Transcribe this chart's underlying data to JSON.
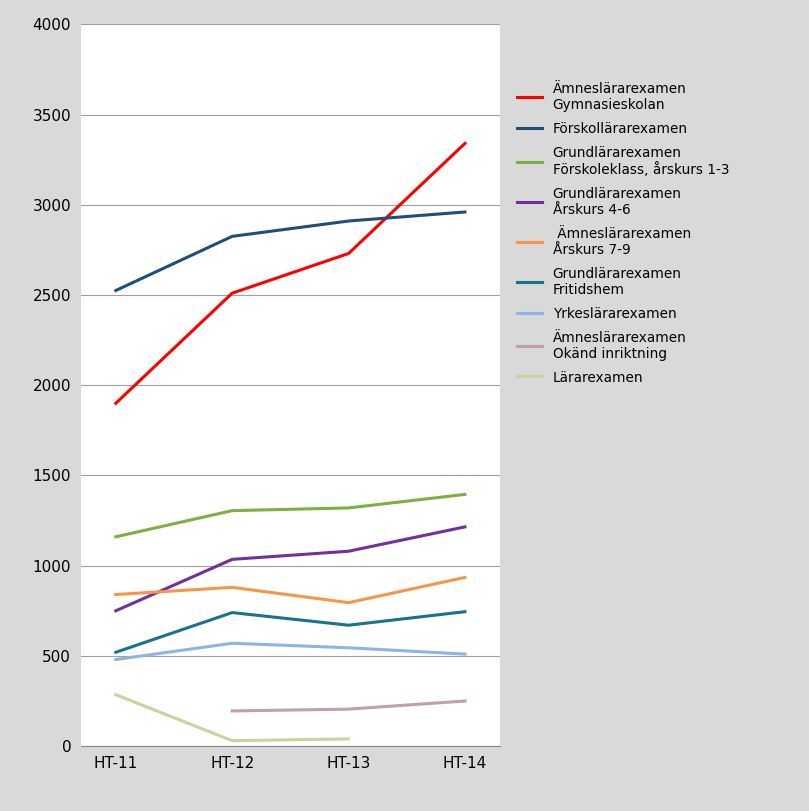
{
  "x_labels": [
    "HT-11",
    "HT-12",
    "HT-13",
    "HT-14"
  ],
  "series": [
    {
      "label": "Ämneslärarexamen\nGymnasieskolan",
      "color": "#ff0000",
      "values": [
        1900,
        2510,
        2730,
        3340
      ]
    },
    {
      "label": "Förskollärarexamen",
      "color": "#1f4e79",
      "values": [
        2525,
        2825,
        2910,
        2960
      ]
    },
    {
      "label": "Grundlärarexamen\nFörskoleklass, årskurs 1-3",
      "color": "#7cb040",
      "values": [
        1160,
        1305,
        1320,
        1395
      ]
    },
    {
      "label": "Grundlärarexamen\nÅrskurs 4-6",
      "color": "#7030a0",
      "values": [
        750,
        1035,
        1080,
        1215
      ]
    },
    {
      "label": " Ämneslärarexamen\nÅrskurs 7-9",
      "color": "#f79646",
      "values": [
        840,
        880,
        795,
        935
      ]
    },
    {
      "label": "Grundlärarexamen\nFritidshem",
      "color": "#17748a",
      "values": [
        520,
        740,
        670,
        745
      ]
    },
    {
      "label": "Yrkeslärarexamen",
      "color": "#8db4e2",
      "values": [
        480,
        570,
        545,
        510
      ]
    },
    {
      "label": "Ämneslärarexamen\nOkänd inriktning",
      "color": "#c0a0a0",
      "values": [
        null,
        195,
        205,
        250
      ]
    },
    {
      "label": "Lärarexamen",
      "color": "#c3d69b",
      "values": [
        285,
        30,
        40,
        null
      ]
    }
  ],
  "ylim": [
    0,
    4000
  ],
  "yticks": [
    0,
    500,
    1000,
    1500,
    2000,
    2500,
    3000,
    3500,
    4000
  ],
  "title": "",
  "figsize": [
    8.09,
    8.11
  ],
  "dpi": 100,
  "bg_color": "#d9d9d9",
  "plot_bg_color": "#ffffff",
  "grid_color": "#a0a0a0",
  "line_width": 2.2
}
